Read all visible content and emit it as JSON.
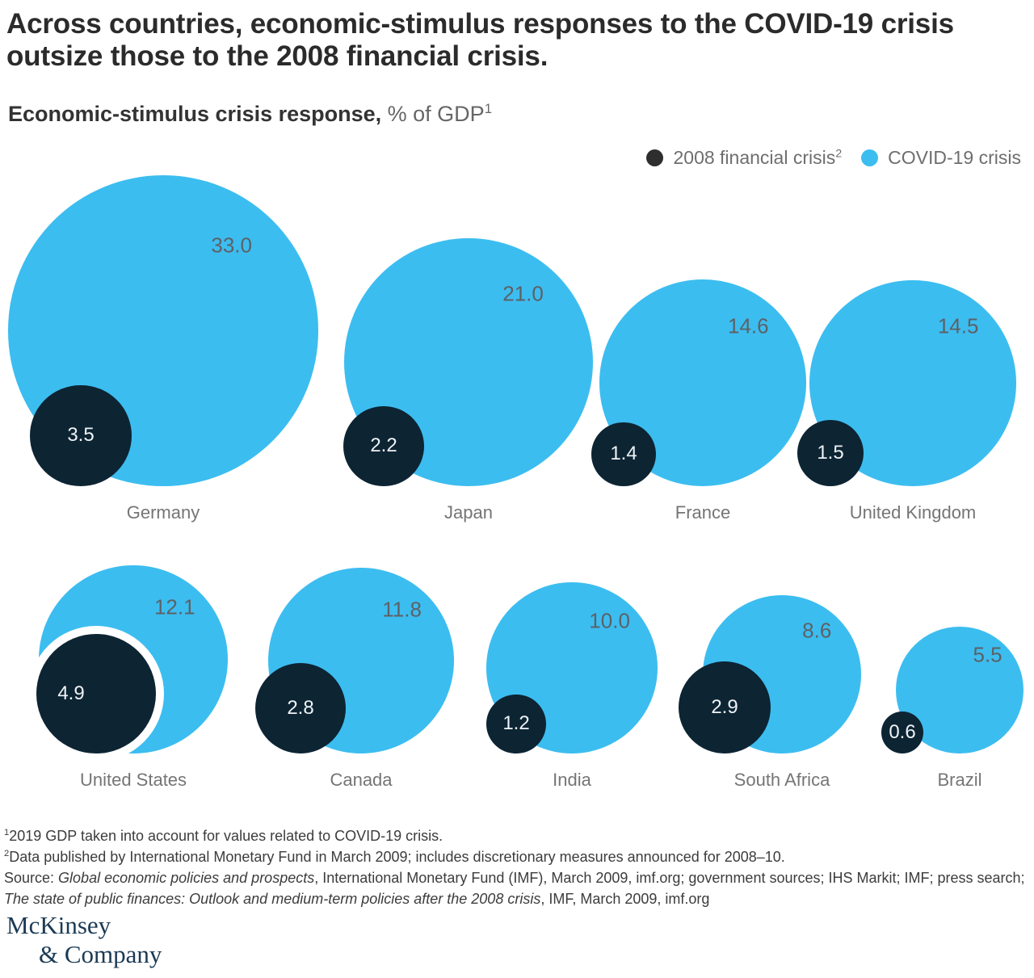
{
  "header": {
    "title": "Across countries, economic-stimulus responses to the COVID-19 crisis outsize those to the 2008 financial crisis.",
    "subtitle_bold": "Economic-stimulus crisis response,",
    "subtitle_rest": " % of GDP",
    "subtitle_sup": "1"
  },
  "legend": {
    "items": [
      {
        "label": "2008 financial crisis",
        "sup": "2",
        "swatch": "#2e2e2e"
      },
      {
        "label": "COVID-19 crisis",
        "sup": "",
        "swatch": "#3cbdf0"
      }
    ]
  },
  "chart_data": {
    "type": "bubble",
    "unit": "% of GDP",
    "sizing": "circle area proportional to value",
    "categories": [
      "Germany",
      "Japan",
      "France",
      "United Kingdom",
      "United States",
      "Canada",
      "India",
      "South Africa",
      "Brazil"
    ],
    "series": [
      {
        "name": "2008 financial crisis",
        "color": "#0d2433",
        "values": [
          3.5,
          2.2,
          1.4,
          1.5,
          4.9,
          2.8,
          1.2,
          2.9,
          0.6
        ]
      },
      {
        "name": "COVID-19 crisis",
        "color": "#3cbdf0",
        "values": [
          33.0,
          21.0,
          14.6,
          14.5,
          12.1,
          11.8,
          10.0,
          8.6,
          5.5
        ]
      }
    ]
  },
  "footnotes": [
    {
      "sup": "1",
      "text": "2019 GDP taken into account for values related to COVID-19 crisis."
    },
    {
      "sup": "2",
      "text": "Data published by International Monetary Fund in March 2009; includes discretionary measures announced for 2008–10."
    }
  ],
  "source": {
    "prefix": "Source: ",
    "italic1": "Global economic policies and prospects",
    "middle": ", International Monetary Fund (IMF), March 2009, imf.org; government sources; IHS Markit; IMF; press search; ",
    "italic2": "The state of public finances: Outlook and medium-term policies after the 2008 crisis",
    "suffix": ", IMF, March 2009, imf.org"
  },
  "logo": {
    "line1": "McKinsey",
    "line2": "& Company"
  }
}
